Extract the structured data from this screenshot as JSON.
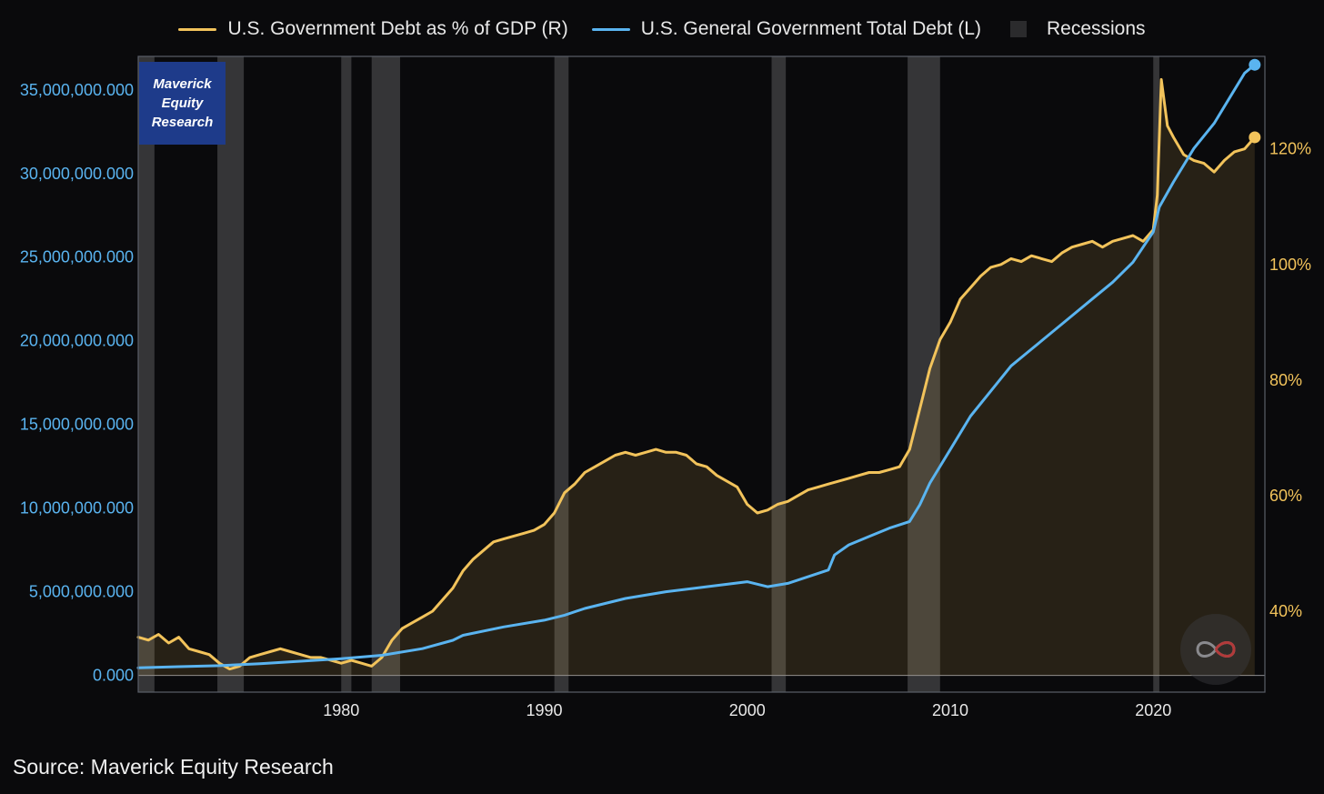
{
  "legend": {
    "series_1": "U.S. Government Debt as % of GDP (R)",
    "series_2": "U.S. General Government Total Debt (L)",
    "recessions": "Recessions"
  },
  "brand_box": {
    "line_1": "Maverick",
    "line_2": "Equity",
    "line_3": "Research"
  },
  "source_text": "Source: Maverick Equity Research",
  "logo": {
    "icon": "infinity-logo-icon"
  },
  "colors": {
    "background": "#0a0a0c",
    "debt_gdp_line": "#f2c35b",
    "total_debt_line": "#5ab4f0",
    "recession_band": "#3a3a3c",
    "brand_box": "#1e3b8a"
  },
  "chart_data": {
    "type": "line",
    "title": "",
    "xlabel": "",
    "x_ticks": [
      "1980",
      "1990",
      "2000",
      "2010",
      "2020"
    ],
    "xlim": [
      1970,
      2025.5
    ],
    "left_axis": {
      "ticks": [
        "0.000",
        "5,000,000.000",
        "10,000,000.000",
        "15,000,000.000",
        "20,000,000.000",
        "25,000,000.000",
        "30,000,000.000",
        "35,000,000.000"
      ],
      "ylim": [
        -1000000,
        37000000
      ],
      "color": "#5ab4f0"
    },
    "right_axis": {
      "ticks": [
        "40%",
        "60%",
        "80%",
        "100%",
        "120%"
      ],
      "tick_values": [
        40,
        60,
        80,
        100,
        120
      ],
      "ylim": [
        26,
        136
      ],
      "color": "#f2c35b"
    },
    "recessions": [
      [
        1970.0,
        1970.8
      ],
      [
        1973.9,
        1975.2
      ],
      [
        1980.0,
        1980.5
      ],
      [
        1981.5,
        1982.9
      ],
      [
        1990.5,
        1991.2
      ],
      [
        2001.2,
        2001.9
      ],
      [
        2007.9,
        2009.5
      ],
      [
        2020.0,
        2020.3
      ]
    ],
    "series": [
      {
        "name": "U.S. Government Debt as % of GDP (R)",
        "axis": "right",
        "x": [
          1970,
          1970.5,
          1971,
          1971.5,
          1972,
          1972.5,
          1973,
          1973.5,
          1974,
          1974.5,
          1975,
          1975.5,
          1976,
          1976.5,
          1977,
          1977.5,
          1978,
          1978.5,
          1979,
          1979.5,
          1980,
          1980.5,
          1981,
          1981.5,
          1982,
          1982.5,
          1983,
          1983.5,
          1984,
          1984.5,
          1985,
          1985.5,
          1986,
          1986.5,
          1987,
          1987.5,
          1988,
          1988.5,
          1989,
          1989.5,
          1990,
          1990.5,
          1991,
          1991.5,
          1992,
          1992.5,
          1993,
          1993.5,
          1994,
          1994.5,
          1995,
          1995.5,
          1996,
          1996.5,
          1997,
          1997.5,
          1998,
          1998.5,
          1999,
          1999.5,
          2000,
          2000.5,
          2001,
          2001.5,
          2002,
          2002.5,
          2003,
          2003.5,
          2004,
          2004.5,
          2005,
          2005.5,
          2006,
          2006.5,
          2007,
          2007.5,
          2008,
          2008.5,
          2009,
          2009.5,
          2010,
          2010.5,
          2011,
          2011.5,
          2012,
          2012.5,
          2013,
          2013.5,
          2014,
          2014.5,
          2015,
          2015.5,
          2016,
          2016.5,
          2017,
          2017.5,
          2018,
          2018.5,
          2019,
          2019.5,
          2020,
          2020.2,
          2020.4,
          2020.7,
          2021,
          2021.5,
          2022,
          2022.5,
          2023,
          2023.5,
          2024,
          2024.5,
          2025
        ],
        "values": [
          35.5,
          35,
          36,
          34.5,
          35.5,
          33.5,
          33,
          32.5,
          31,
          30,
          30.5,
          32,
          32.5,
          33,
          33.5,
          33,
          32.5,
          32,
          32,
          31.5,
          31,
          31.5,
          31,
          30.5,
          32,
          35,
          37,
          38,
          39,
          40,
          42,
          44,
          47,
          49,
          50.5,
          52,
          52.5,
          53,
          53.5,
          54,
          55,
          57,
          60.5,
          62,
          64,
          65,
          66,
          67,
          67.5,
          67,
          67.5,
          68,
          67.5,
          67.5,
          67,
          65.5,
          65,
          63.5,
          62.5,
          61.5,
          58.5,
          57,
          57.5,
          58.5,
          59,
          60,
          61,
          61.5,
          62,
          62.5,
          63,
          63.5,
          64,
          64,
          64.5,
          65,
          68,
          75,
          82,
          87,
          90,
          94,
          96,
          98,
          99.5,
          100,
          101,
          100.5,
          101.5,
          101,
          100.5,
          102,
          103,
          103.5,
          104,
          103,
          104,
          104.5,
          105,
          104,
          106,
          112,
          132,
          124,
          122,
          119,
          118,
          117.5,
          116,
          118,
          119.5,
          120,
          122
        ],
        "end_marker": true
      },
      {
        "name": "U.S. General Government Total Debt (L)",
        "axis": "left",
        "x": [
          1970,
          1972,
          1974,
          1976,
          1978,
          1980,
          1982,
          1984,
          1985.5,
          1986,
          1988,
          1990,
          1991,
          1992,
          1994,
          1996,
          1998,
          2000,
          2001,
          2002,
          2003,
          2004,
          2004.3,
          2005,
          2006,
          2007,
          2008,
          2008.5,
          2009,
          2010,
          2011,
          2012,
          2013,
          2014,
          2015,
          2016,
          2017,
          2018,
          2019,
          2020,
          2020.3,
          2021,
          2021.5,
          2022,
          2023,
          2024,
          2024.5,
          2025
        ],
        "values": [
          450000,
          520000,
          580000,
          700000,
          850000,
          1000000,
          1200000,
          1600000,
          2100000,
          2400000,
          2900000,
          3300000,
          3600000,
          4000000,
          4600000,
          5000000,
          5300000,
          5600000,
          5300000,
          5500000,
          5900000,
          6300000,
          7200000,
          7800000,
          8300000,
          8800000,
          9200000,
          10200000,
          11500000,
          13500000,
          15500000,
          17000000,
          18500000,
          19500000,
          20500000,
          21500000,
          22500000,
          23500000,
          24700000,
          26500000,
          28000000,
          29500000,
          30500000,
          31500000,
          33000000,
          35000000,
          36000000,
          36500000
        ],
        "end_marker": true
      }
    ]
  }
}
